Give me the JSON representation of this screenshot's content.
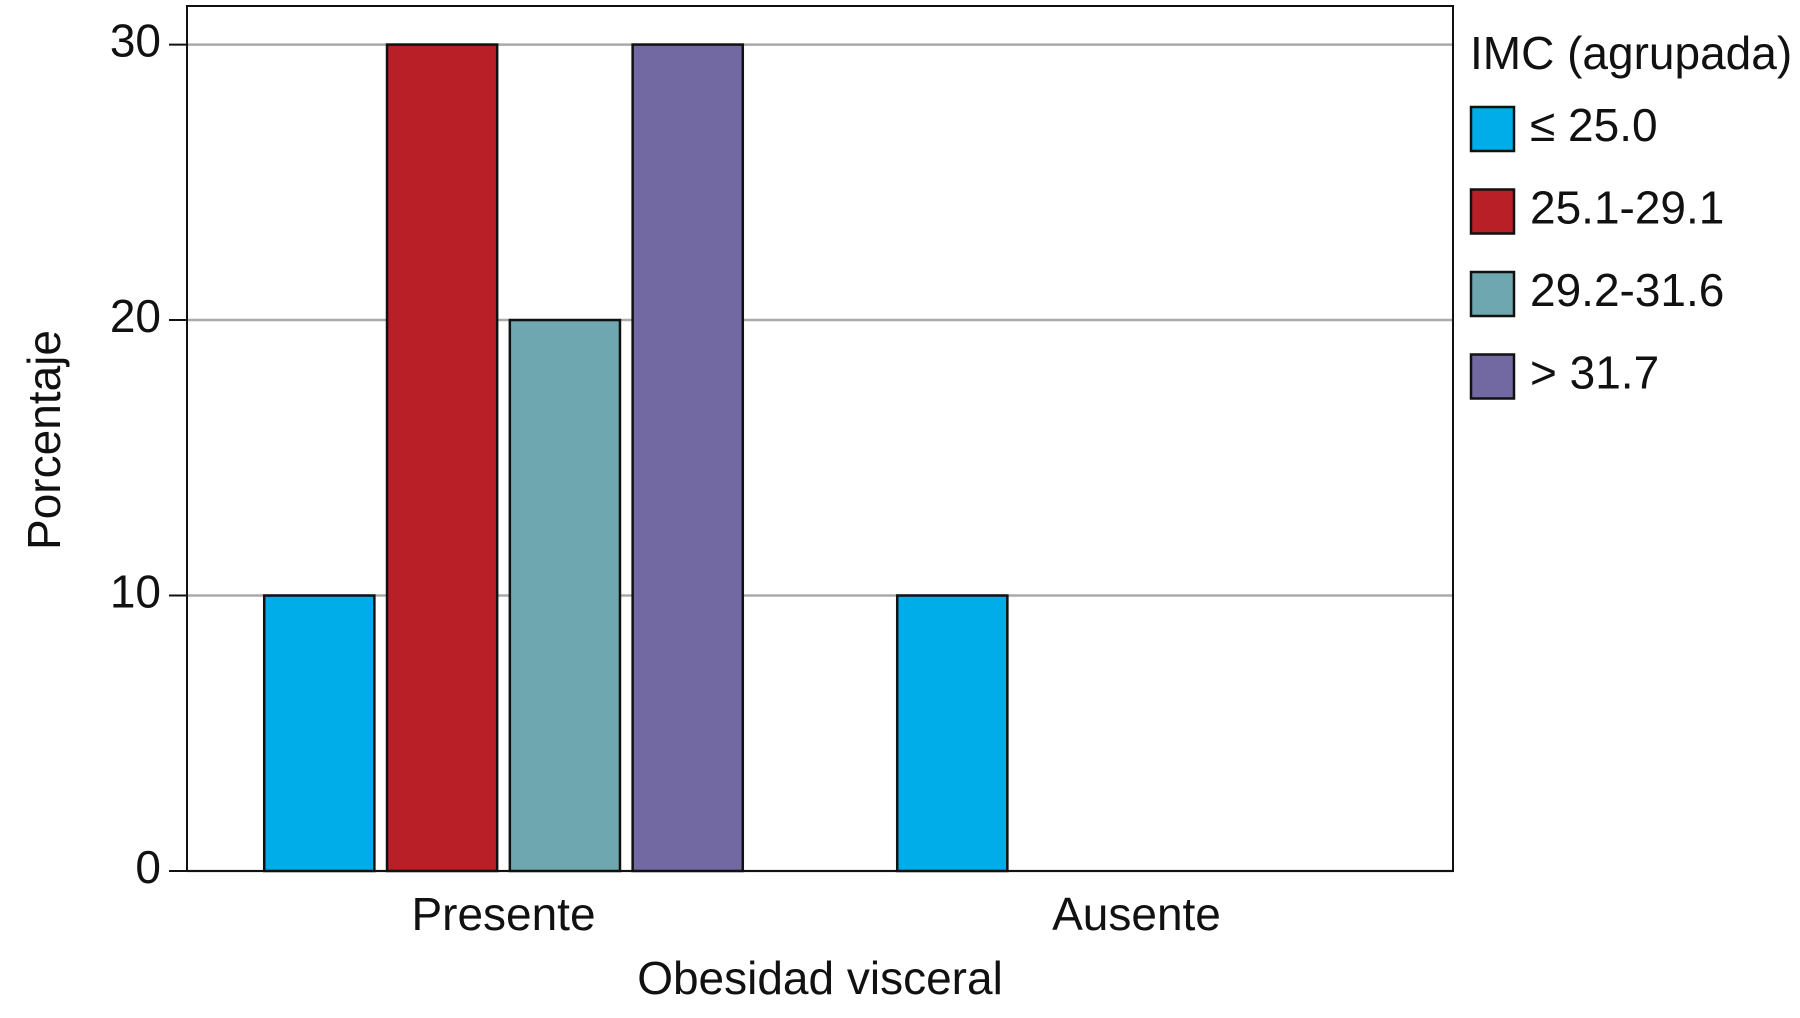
{
  "chart_data": {
    "type": "bar",
    "x_label": "Obesidad visceral",
    "y_label": "Porcentaje",
    "legend_title": "IMC (agrupada)",
    "legend": "right",
    "categories": [
      "Presente",
      "Ausente"
    ],
    "series": [
      {
        "name": "≤ 25.0",
        "color": "#00ade9",
        "values": [
          10,
          10
        ]
      },
      {
        "name": "25.1-29.1",
        "color": "#b81f27",
        "values": [
          30,
          null
        ]
      },
      {
        "name": "29.2-31.6",
        "color": "#6fa7b0",
        "values": [
          20,
          null
        ]
      },
      {
        "name": "> 31.7",
        "color": "#7369a2",
        "values": [
          30,
          null
        ]
      }
    ],
    "ylim": [
      0,
      31.4
    ],
    "yticks": [
      0,
      10,
      20,
      30
    ],
    "grid": true
  }
}
